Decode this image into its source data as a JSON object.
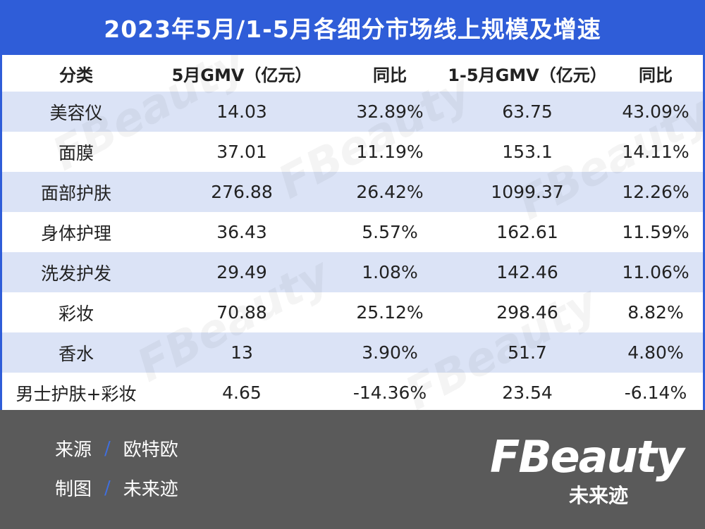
{
  "title": "2023年5月/1-5月各细分市场线上规模及增速",
  "table": {
    "headers": [
      "分类",
      "5月GMV（亿元）",
      "同比",
      "1-5月GMV（亿元）",
      "同比"
    ],
    "rows": [
      [
        "美容仪",
        "14.03",
        "32.89%",
        "63.75",
        "43.09%"
      ],
      [
        "面膜",
        "37.01",
        "11.19%",
        "153.1",
        "14.11%"
      ],
      [
        "面部护肤",
        "276.88",
        "26.42%",
        "1099.37",
        "12.26%"
      ],
      [
        "身体护理",
        "36.43",
        "5.57%",
        "162.61",
        "11.59%"
      ],
      [
        "洗发护发",
        "29.49",
        "1.08%",
        "142.46",
        "11.06%"
      ],
      [
        "彩妆",
        "70.88",
        "25.12%",
        "298.46",
        "8.82%"
      ],
      [
        "香水",
        "13",
        "3.90%",
        "51.7",
        "4.80%"
      ],
      [
        "男士护肤+彩妆",
        "4.65",
        "-14.36%",
        "23.54",
        "-6.14%"
      ]
    ]
  },
  "footer": {
    "source_label": "来源",
    "source_value": "欧特欧",
    "maker_label": "制图",
    "maker_value": "未来迹",
    "separator": "/"
  },
  "logo": {
    "word": "FBeauty",
    "sub": "未来迹"
  },
  "colors": {
    "brand_blue": "#2f5dd8",
    "row_stripe": "#dbe3f6",
    "footer_bg": "#5a5a5a"
  }
}
